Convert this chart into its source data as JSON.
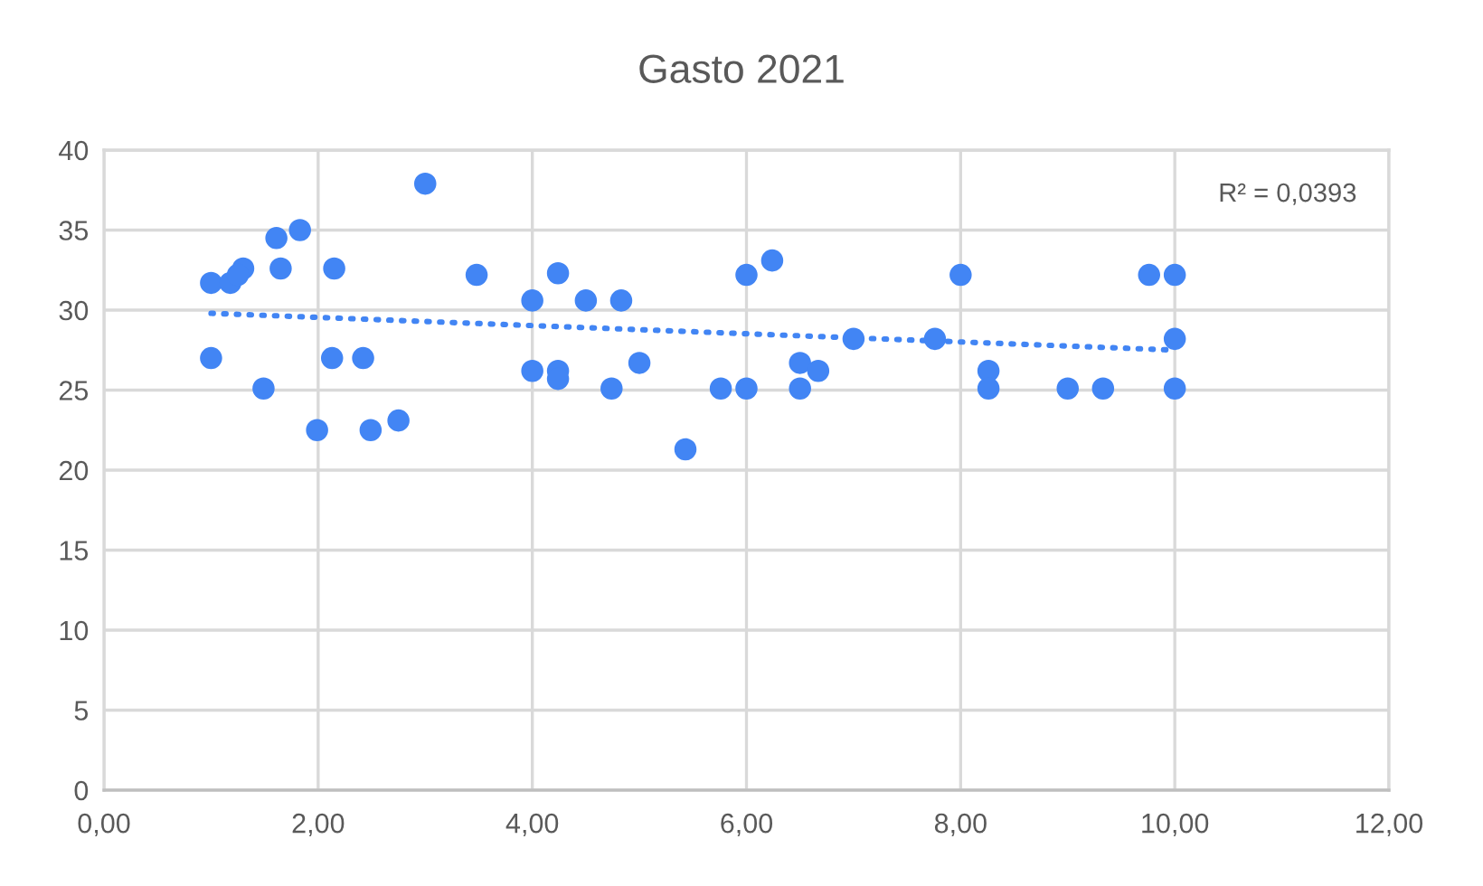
{
  "chart_data": {
    "type": "scatter",
    "title": "Gasto 2021",
    "xlim": [
      0,
      12
    ],
    "xticks": [
      {
        "value": 0,
        "label": "0,00"
      },
      {
        "value": 2,
        "label": "2,00"
      },
      {
        "value": 4,
        "label": "4,00"
      },
      {
        "value": 6,
        "label": "6,00"
      },
      {
        "value": 8,
        "label": "8,00"
      },
      {
        "value": 10,
        "label": "10,00"
      },
      {
        "value": 12,
        "label": "12,00"
      }
    ],
    "ylim": [
      0,
      40
    ],
    "yticks": [
      0,
      5,
      10,
      15,
      20,
      25,
      30,
      35,
      40
    ],
    "grid": true,
    "annotations": [
      "R² = 0,0393"
    ],
    "series": [
      {
        "color": "#4285f4",
        "marker": "circle",
        "x": [
          1.0,
          1.18,
          1.3,
          1.25,
          1.61,
          1.83,
          1.65,
          2.15,
          3.0,
          3.48,
          4.0,
          1.0,
          2.13,
          2.42,
          1.49,
          1.99,
          2.49,
          2.75,
          4.0,
          4.24,
          4.5,
          4.83,
          4.24,
          4.24,
          4.74,
          5.0,
          5.43,
          5.76,
          6.0,
          6.0,
          6.24,
          6.5,
          6.5,
          6.67,
          7.0,
          7.76,
          8.0,
          8.26,
          8.26,
          9.0,
          9.33,
          9.76,
          10.0,
          10.0,
          10.0
        ],
        "values": [
          31.7,
          31.7,
          32.6,
          32.2,
          34.5,
          35.0,
          32.6,
          32.6,
          37.9,
          32.2,
          30.6,
          27.0,
          27.0,
          27.0,
          25.1,
          22.5,
          22.5,
          23.1,
          26.2,
          32.3,
          30.6,
          30.6,
          26.2,
          25.7,
          25.1,
          26.7,
          21.3,
          25.1,
          25.1,
          32.2,
          33.1,
          26.7,
          25.1,
          26.2,
          28.2,
          28.2,
          32.2,
          26.2,
          25.1,
          25.1,
          25.1,
          32.2,
          32.2,
          28.2,
          25.1
        ]
      },
      {
        "type": "line",
        "color": "#4285f4",
        "marker": "none",
        "line_style": "dotted",
        "x": [
          1.0,
          10.0
        ],
        "values": [
          29.8,
          27.5
        ]
      }
    ]
  }
}
